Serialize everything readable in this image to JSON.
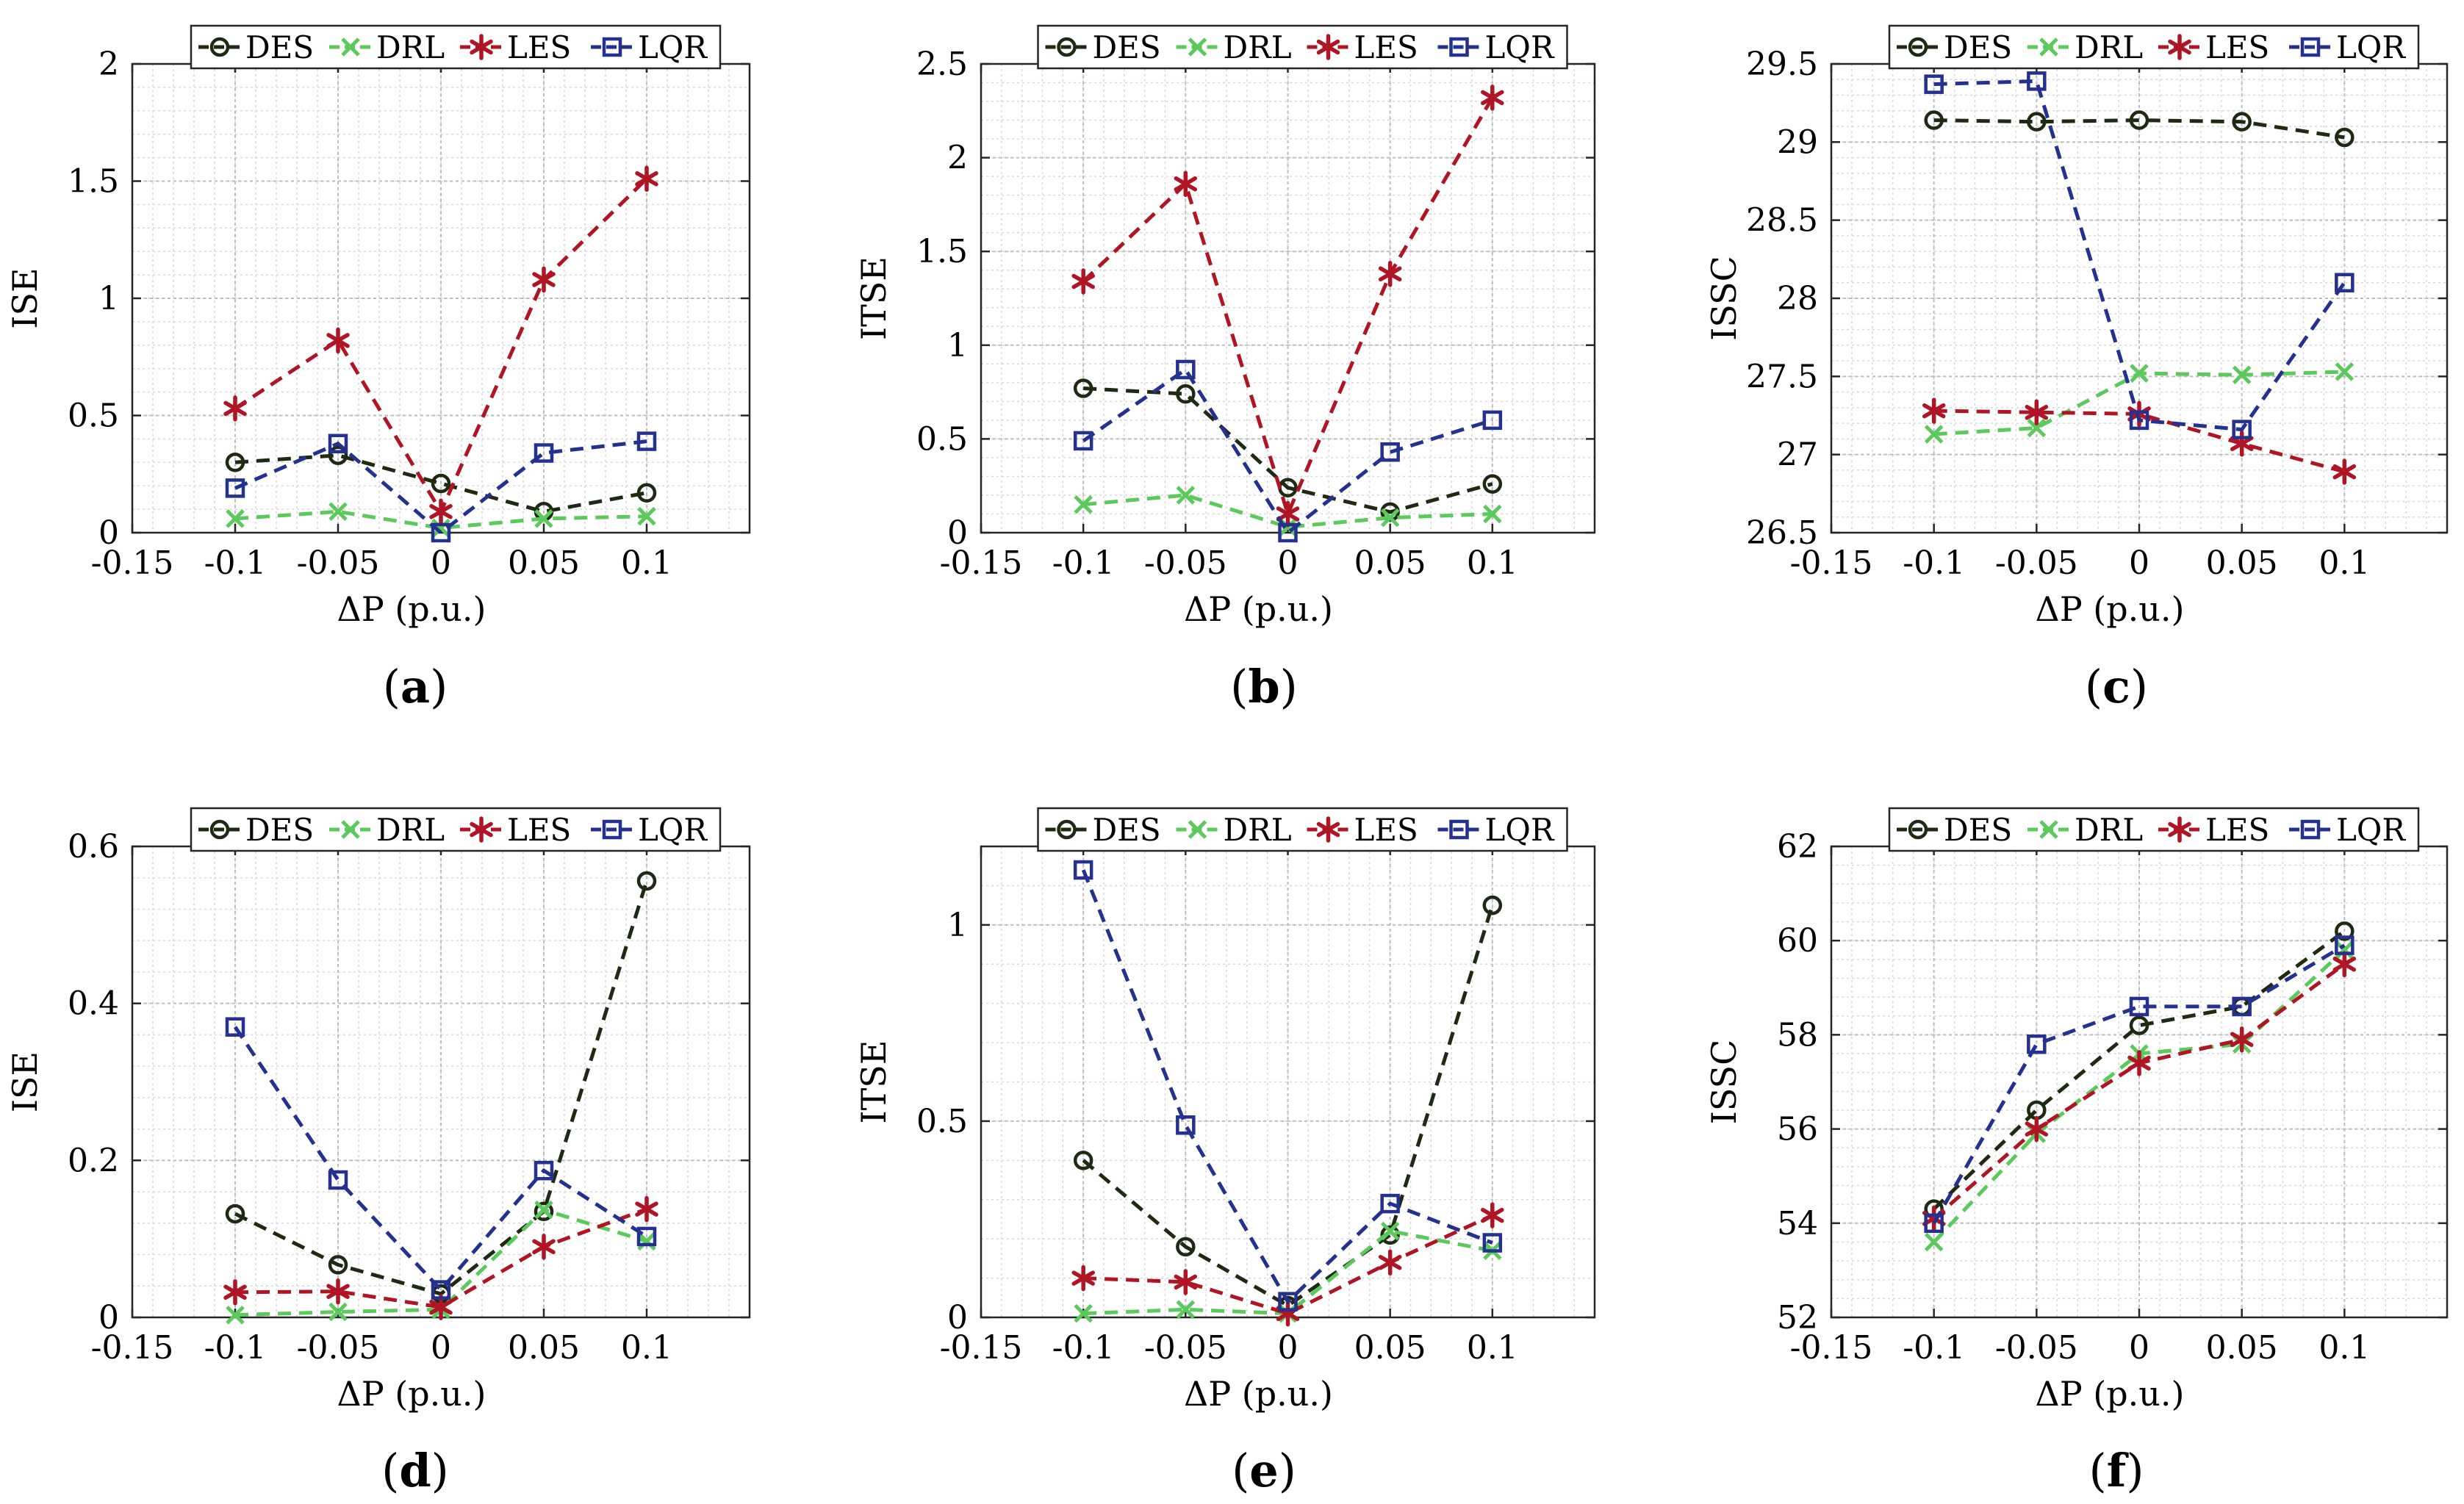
{
  "figure": {
    "x_tick_labels": [
      "-0.15",
      "-0.1",
      "-0.05",
      "0",
      "0.05",
      "0.1"
    ],
    "x_label": "ΔP (p.u.)"
  },
  "legend": [
    {
      "name": "DES",
      "color": "#1f2a12",
      "marker": "circle"
    },
    {
      "name": "DRL",
      "color": "#5cc95c",
      "marker": "x"
    },
    {
      "name": "LES",
      "color": "#b01525",
      "marker": "star"
    },
    {
      "name": "LQR",
      "color": "#24318f",
      "marker": "square"
    }
  ],
  "captions": [
    {
      "open": "(",
      "letter": "a",
      "close": ")"
    },
    {
      "open": "(",
      "letter": "b",
      "close": ")"
    },
    {
      "open": "(",
      "letter": "c",
      "close": ")"
    },
    {
      "open": "(",
      "letter": "d",
      "close": ")"
    },
    {
      "open": "(",
      "letter": "e",
      "close": ")"
    },
    {
      "open": "(",
      "letter": "f",
      "close": ")"
    }
  ],
  "chart_data": [
    {
      "id": "a",
      "type": "line",
      "title": "",
      "xlabel": "ΔP (p.u.)",
      "ylabel": "ISE",
      "xlim": [
        -0.15,
        0.15
      ],
      "ylim": [
        0,
        2
      ],
      "yticks": [
        0,
        0.5,
        1,
        1.5,
        2
      ],
      "ytick_labels": [
        "0",
        "0.5",
        "1",
        "1.5",
        "2"
      ],
      "x": [
        -0.1,
        -0.05,
        0,
        0.05,
        0.1
      ],
      "series": [
        {
          "name": "DES",
          "values": [
            0.3,
            0.33,
            0.21,
            0.09,
            0.17
          ]
        },
        {
          "name": "DRL",
          "values": [
            0.06,
            0.09,
            0.02,
            0.06,
            0.07
          ]
        },
        {
          "name": "LES",
          "values": [
            0.53,
            0.82,
            0.09,
            1.08,
            1.51
          ]
        },
        {
          "name": "LQR",
          "values": [
            0.19,
            0.38,
            0.0,
            0.34,
            0.39
          ]
        }
      ]
    },
    {
      "id": "b",
      "type": "line",
      "title": "",
      "xlabel": "ΔP (p.u.)",
      "ylabel": "ITSE",
      "xlim": [
        -0.15,
        0.15
      ],
      "ylim": [
        0,
        2.5
      ],
      "yticks": [
        0,
        0.5,
        1,
        1.5,
        2,
        2.5
      ],
      "ytick_labels": [
        "0",
        "0.5",
        "1",
        "1.5",
        "2",
        "2.5"
      ],
      "x": [
        -0.1,
        -0.05,
        0,
        0.05,
        0.1
      ],
      "series": [
        {
          "name": "DES",
          "values": [
            0.77,
            0.74,
            0.24,
            0.11,
            0.26
          ]
        },
        {
          "name": "DRL",
          "values": [
            0.15,
            0.2,
            0.03,
            0.08,
            0.1
          ]
        },
        {
          "name": "LES",
          "values": [
            1.34,
            1.86,
            0.1,
            1.38,
            2.32
          ]
        },
        {
          "name": "LQR",
          "values": [
            0.49,
            0.87,
            0.0,
            0.43,
            0.6
          ]
        }
      ]
    },
    {
      "id": "c",
      "type": "line",
      "title": "",
      "xlabel": "ΔP (p.u.)",
      "ylabel": "ISSC",
      "xlim": [
        -0.15,
        0.15
      ],
      "ylim": [
        26.5,
        29.5
      ],
      "yticks": [
        26.5,
        27,
        27.5,
        28,
        28.5,
        29,
        29.5
      ],
      "ytick_labels": [
        "26.5",
        "27",
        "27.5",
        "28",
        "28.5",
        "29",
        "29.5"
      ],
      "x": [
        -0.1,
        -0.05,
        0,
        0.05,
        0.1
      ],
      "series": [
        {
          "name": "DES",
          "values": [
            29.14,
            29.13,
            29.14,
            29.13,
            29.03
          ]
        },
        {
          "name": "DRL",
          "values": [
            27.13,
            27.17,
            27.52,
            27.51,
            27.53
          ]
        },
        {
          "name": "LES",
          "values": [
            27.28,
            27.27,
            27.26,
            27.07,
            26.89
          ]
        },
        {
          "name": "LQR",
          "values": [
            29.37,
            29.39,
            27.22,
            27.16,
            28.1
          ]
        }
      ]
    },
    {
      "id": "d",
      "type": "line",
      "title": "",
      "xlabel": "ΔP (p.u.)",
      "ylabel": "ISE",
      "xlim": [
        -0.15,
        0.15
      ],
      "ylim": [
        0,
        0.6
      ],
      "yticks": [
        0,
        0.2,
        0.4,
        0.6
      ],
      "ytick_labels": [
        "0",
        "0.2",
        "0.4",
        "0.6"
      ],
      "x": [
        -0.1,
        -0.05,
        0,
        0.05,
        0.1
      ],
      "series": [
        {
          "name": "DES",
          "values": [
            0.132,
            0.067,
            0.03,
            0.135,
            0.556
          ]
        },
        {
          "name": "DRL",
          "values": [
            0.003,
            0.007,
            0.01,
            0.137,
            0.097
          ]
        },
        {
          "name": "LES",
          "values": [
            0.032,
            0.033,
            0.013,
            0.09,
            0.138
          ]
        },
        {
          "name": "LQR",
          "values": [
            0.37,
            0.175,
            0.035,
            0.187,
            0.103
          ]
        }
      ]
    },
    {
      "id": "e",
      "type": "line",
      "title": "",
      "xlabel": "ΔP (p.u.)",
      "ylabel": "ITSE",
      "xlim": [
        -0.15,
        0.15
      ],
      "ylim": [
        0,
        1.2
      ],
      "yticks": [
        0,
        0.5,
        1
      ],
      "ytick_labels": [
        "0",
        "0.5",
        "1"
      ],
      "x": [
        -0.1,
        -0.05,
        0,
        0.05,
        0.1
      ],
      "series": [
        {
          "name": "DES",
          "values": [
            0.4,
            0.18,
            0.03,
            0.21,
            1.05
          ]
        },
        {
          "name": "DRL",
          "values": [
            0.01,
            0.02,
            0.01,
            0.22,
            0.17
          ]
        },
        {
          "name": "LES",
          "values": [
            0.1,
            0.09,
            0.01,
            0.14,
            0.26
          ]
        },
        {
          "name": "LQR",
          "values": [
            1.14,
            0.49,
            0.04,
            0.29,
            0.19
          ]
        }
      ]
    },
    {
      "id": "f",
      "type": "line",
      "title": "",
      "xlabel": "ΔP (p.u.)",
      "ylabel": "ISSC",
      "xlim": [
        -0.15,
        0.15
      ],
      "ylim": [
        52,
        62
      ],
      "yticks": [
        52,
        54,
        56,
        58,
        60,
        62
      ],
      "ytick_labels": [
        "52",
        "54",
        "56",
        "58",
        "60",
        "62"
      ],
      "x": [
        -0.1,
        -0.05,
        0,
        0.05,
        0.1
      ],
      "series": [
        {
          "name": "DES",
          "values": [
            54.3,
            56.4,
            58.2,
            58.6,
            60.2
          ]
        },
        {
          "name": "DRL",
          "values": [
            53.6,
            55.9,
            57.6,
            57.8,
            59.8
          ]
        },
        {
          "name": "LES",
          "values": [
            54.1,
            56.0,
            57.4,
            57.9,
            59.5
          ]
        },
        {
          "name": "LQR",
          "values": [
            54.0,
            57.8,
            58.6,
            58.6,
            59.9
          ]
        }
      ]
    }
  ]
}
